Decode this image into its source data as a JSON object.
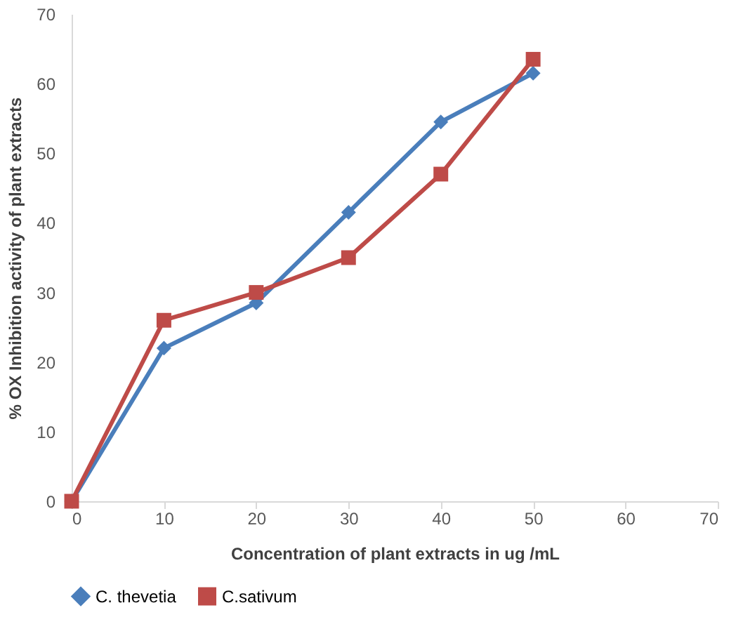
{
  "chart_data": {
    "type": "line",
    "xlabel": "Concentration of plant extracts in ug /mL",
    "ylabel": "% OX Inhibition activity of plant extracts",
    "x": [
      0,
      10,
      20,
      30,
      40,
      50
    ],
    "series": [
      {
        "name": "C. thevetia",
        "color": "#4a7ebb",
        "marker": "diamond",
        "values": [
          0,
          22,
          28.5,
          41.5,
          54.5,
          61.5
        ]
      },
      {
        "name": "C.sativum",
        "color": "#be4b48",
        "marker": "square",
        "values": [
          0,
          26,
          30,
          35,
          47,
          63.5
        ]
      }
    ],
    "xlim": [
      0,
      70
    ],
    "xticks": [
      0,
      10,
      20,
      30,
      40,
      50,
      60,
      70
    ],
    "ylim": [
      0,
      70
    ],
    "yticks": [
      0,
      10,
      20,
      30,
      40,
      50,
      60,
      70
    ],
    "grid": false,
    "legend": "bottom"
  }
}
